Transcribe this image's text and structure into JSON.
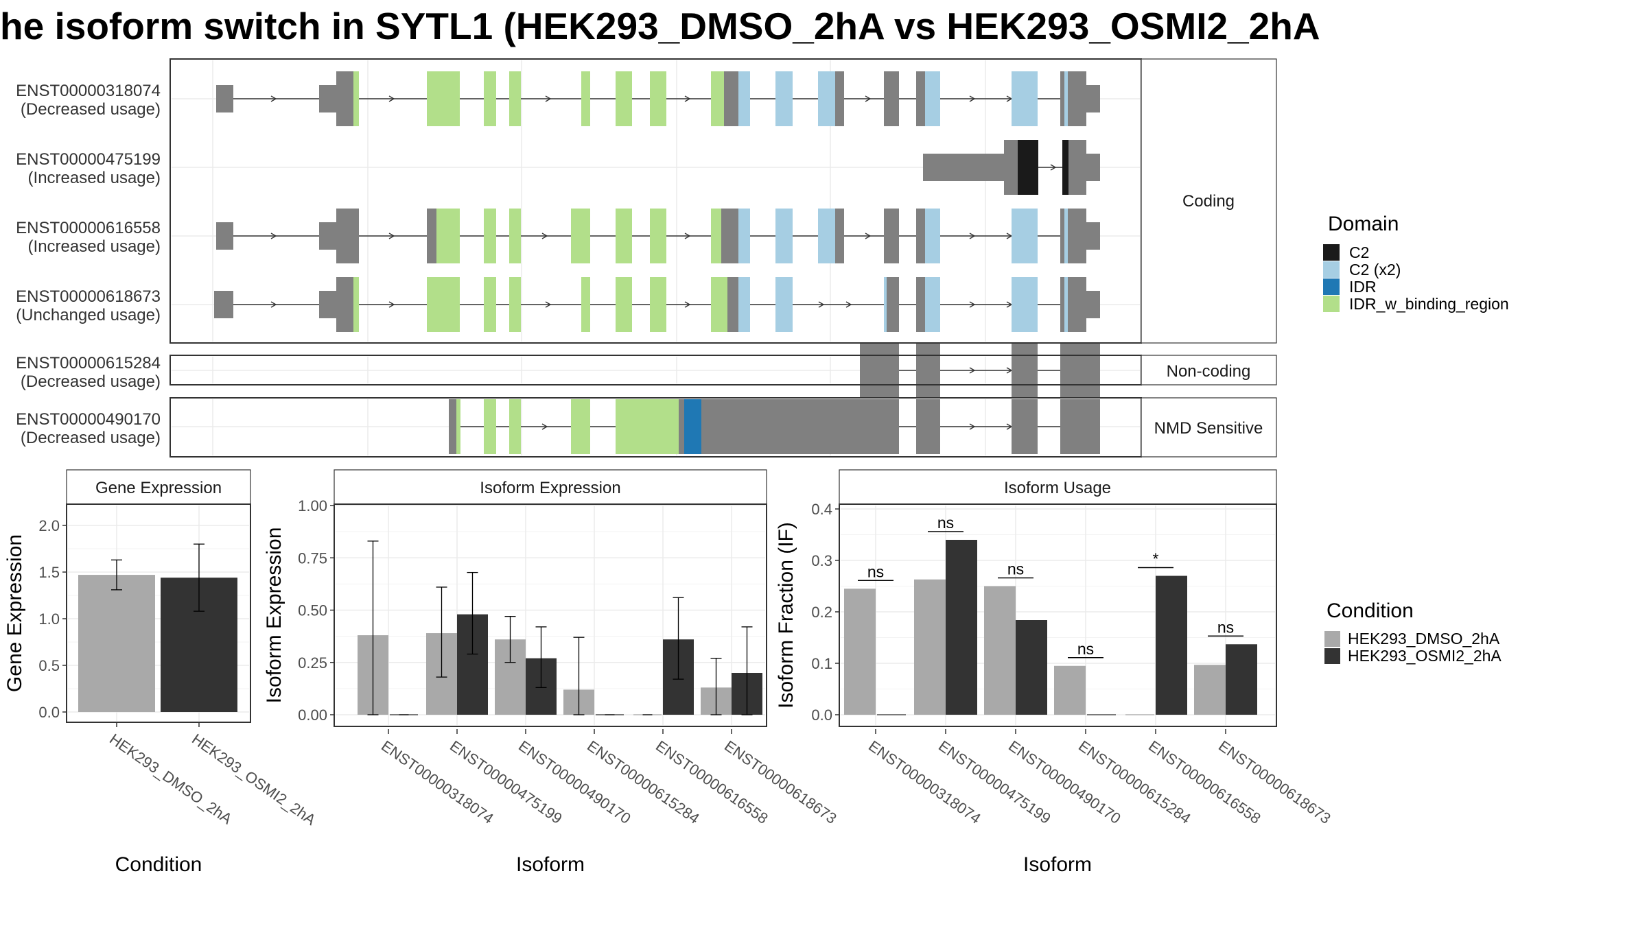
{
  "chart_data": [
    {
      "type": "gene_structure",
      "title": "he isoform switch in SYTL1 (HEK293_DMSO_2hA vs HEK293_OSMI2_2hA",
      "domain_legend": {
        "title": "Domain",
        "entries": [
          {
            "label": "C2",
            "color": "#1a1a1a"
          },
          {
            "label": "C2 (x2)",
            "color": "#a6cee3"
          },
          {
            "label": "IDR",
            "color": "#1f78b4"
          },
          {
            "label": "IDR_w_binding_region",
            "color": "#b2df8a"
          }
        ]
      },
      "colors": {
        "exon": "#808080",
        "intron": "#333333",
        "C2": "#1a1a1a",
        "C2x2": "#a6cee3",
        "IDR": "#1f78b4",
        "IDRw": "#b2df8a"
      },
      "panels": [
        {
          "label": "Coding",
          "transcripts": [
            {
              "id": "ENST00000318074",
              "usage": "(Decreased usage)"
            },
            {
              "id": "ENST00000475199",
              "usage": "(Increased usage)"
            },
            {
              "id": "ENST00000616558",
              "usage": "(Increased usage)"
            },
            {
              "id": "ENST00000618673",
              "usage": "(Unchanged usage)"
            }
          ]
        },
        {
          "label": "Non-coding",
          "transcripts": [
            {
              "id": "ENST00000615284",
              "usage": "(Decreased usage)"
            }
          ]
        },
        {
          "label": "NMD Sensitive",
          "transcripts": [
            {
              "id": "ENST00000490170",
              "usage": "(Decreased usage)"
            }
          ]
        }
      ]
    },
    {
      "type": "bar",
      "panel_title": "Gene Expression",
      "xlabel": "Condition",
      "ylabel": "Gene Expression",
      "ylim": [
        0,
        2.2
      ],
      "yticks": [
        "0.0",
        "0.5",
        "1.0",
        "1.5",
        "2.0"
      ],
      "categories": [
        "HEK293_DMSO_2hA",
        "HEK293_OSMI2_2hA"
      ],
      "values": [
        1.47,
        1.44
      ],
      "errors": [
        [
          1.31,
          1.63
        ],
        [
          1.08,
          1.8
        ]
      ],
      "colors": [
        "#a9a9a9",
        "#333333"
      ]
    },
    {
      "type": "bar",
      "panel_title": "Isoform Expression",
      "xlabel": "Isoform",
      "ylabel": "Isoform Expression",
      "ylim": [
        0,
        1.0
      ],
      "yticks": [
        "0.00",
        "0.25",
        "0.50",
        "0.75",
        "1.00"
      ],
      "categories": [
        "ENST00000318074",
        "ENST00000475199",
        "ENST00000490170",
        "ENST00000615284",
        "ENST00000616558",
        "ENST00000618673"
      ],
      "series": [
        {
          "name": "HEK293_DMSO_2hA",
          "values": [
            0.38,
            0.39,
            0.36,
            0.12,
            0.0,
            0.13
          ],
          "errors": [
            [
              0.0,
              0.83
            ],
            [
              0.18,
              0.61
            ],
            [
              0.25,
              0.47
            ],
            [
              0.0,
              0.37
            ],
            [
              0.0,
              0.0
            ],
            [
              0.0,
              0.27
            ]
          ]
        },
        {
          "name": "HEK293_OSMI2_2hA",
          "values": [
            0.0,
            0.48,
            0.27,
            0.0,
            0.36,
            0.2
          ],
          "errors": [
            [
              0.0,
              0.0
            ],
            [
              0.29,
              0.68
            ],
            [
              0.13,
              0.42
            ],
            [
              0.0,
              0.0
            ],
            [
              0.17,
              0.56
            ],
            [
              0.0,
              0.42
            ]
          ]
        }
      ]
    },
    {
      "type": "bar",
      "panel_title": "Isoform Usage",
      "xlabel": "Isoform",
      "ylabel": "Isoform Fraction (IF)",
      "ylim": [
        0,
        0.4
      ],
      "yticks": [
        "0.0",
        "0.1",
        "0.2",
        "0.3",
        "0.4"
      ],
      "categories": [
        "ENST00000318074",
        "ENST00000475199",
        "ENST00000490170",
        "ENST00000615284",
        "ENST00000616558",
        "ENST00000618673"
      ],
      "series": [
        {
          "name": "HEK293_DMSO_2hA",
          "values": [
            0.245,
            0.263,
            0.25,
            0.095,
            0.0,
            0.097
          ]
        },
        {
          "name": "HEK293_OSMI2_2hA",
          "values": [
            0.0,
            0.34,
            0.184,
            0.0,
            0.27,
            0.137
          ]
        }
      ],
      "significance": [
        "ns",
        "ns",
        "ns",
        "ns",
        "*",
        "ns"
      ]
    }
  ],
  "condition_legend": {
    "title": "Condition",
    "entries": [
      {
        "label": "HEK293_DMSO_2hA",
        "color": "#a9a9a9"
      },
      {
        "label": "HEK293_OSMI2_2hA",
        "color": "#333333"
      }
    ]
  }
}
